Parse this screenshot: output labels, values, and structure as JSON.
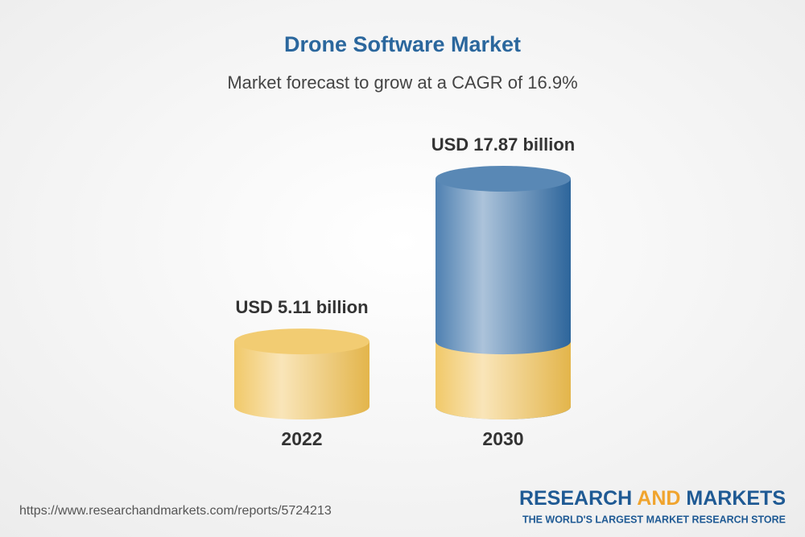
{
  "chart_data": {
    "type": "cylinder",
    "title": "Drone Software Market",
    "subtitle": "Market forecast to grow at a CAGR of 16.9%",
    "categories": [
      "2022",
      "2030"
    ],
    "values": [
      5.11,
      17.87
    ],
    "value_labels": [
      "USD 5.11 billion",
      "USD 17.87 billion"
    ],
    "colors": [
      "#efbf4f",
      "#2f6aa3"
    ],
    "source": "https://www.researchandmarkets.com/reports/5724213",
    "brand": [
      "RESEARCH",
      "AND",
      "MARKETS"
    ],
    "tagline": "THE WORLD'S LARGEST MARKET RESEARCH STORE"
  }
}
